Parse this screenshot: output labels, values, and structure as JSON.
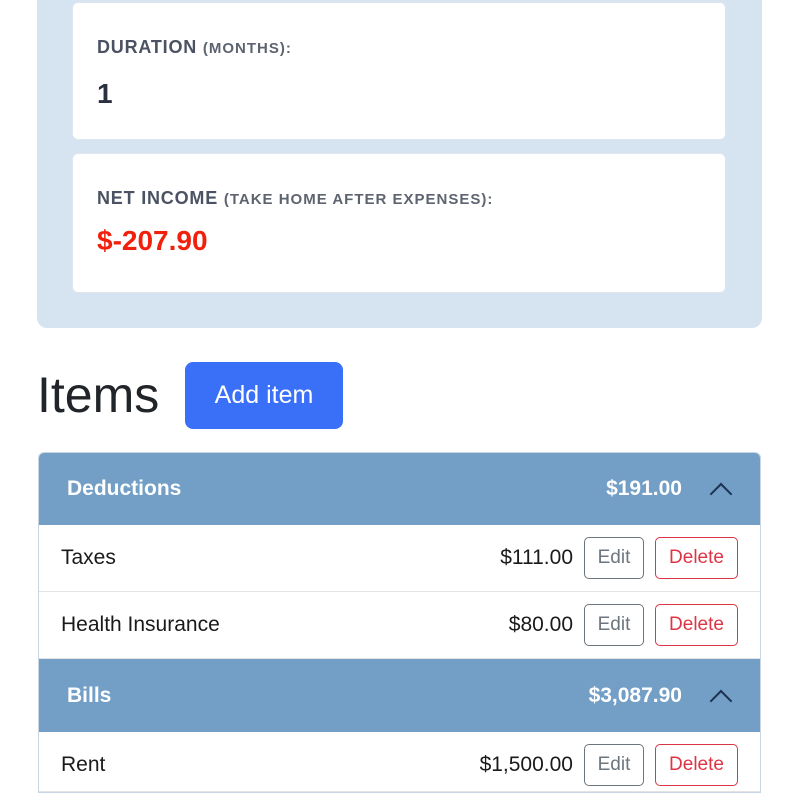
{
  "summary": {
    "duration": {
      "label": "Duration",
      "sub": "(months):",
      "value": "1"
    },
    "net_income": {
      "label": "Net income",
      "sub": "(take home after expenses):",
      "value": "$-207.90",
      "color": "#f0200c"
    }
  },
  "items": {
    "title": "Items",
    "add_label": "Add item",
    "groups": [
      {
        "name": "Deductions",
        "total": "$191.00",
        "rows": [
          {
            "name": "Taxes",
            "amount": "$111.00"
          },
          {
            "name": "Health Insurance",
            "amount": "$80.00"
          }
        ]
      },
      {
        "name": "Bills",
        "total": "$3,087.90",
        "rows": [
          {
            "name": "Rent",
            "amount": "$1,500.00"
          }
        ]
      }
    ],
    "edit_label": "Edit",
    "delete_label": "Delete"
  }
}
